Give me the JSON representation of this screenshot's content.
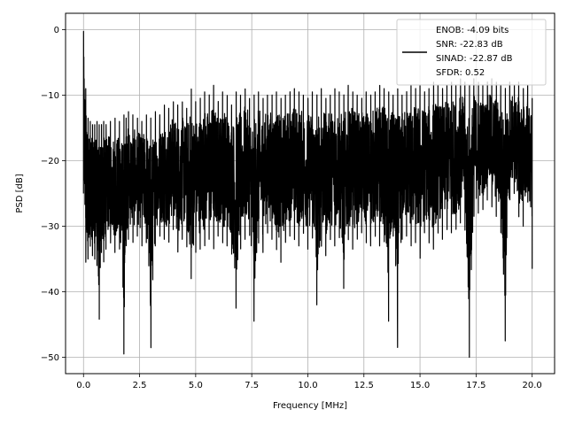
{
  "chart_data": {
    "type": "line",
    "title": "",
    "xlabel": "Frequency [MHz]",
    "ylabel": "PSD [dB]",
    "xlim": [
      -0.8,
      21.0
    ],
    "ylim": [
      -52.5,
      2.5
    ],
    "x_ticks": [
      0.0,
      2.5,
      5.0,
      7.5,
      10.0,
      12.5,
      15.0,
      17.5,
      20.0
    ],
    "x_tick_labels": [
      "0.0",
      "2.5",
      "5.0",
      "7.5",
      "10.0",
      "12.5",
      "15.0",
      "17.5",
      "20.0"
    ],
    "y_ticks": [
      0,
      -10,
      -20,
      -30,
      -40,
      -50
    ],
    "y_tick_labels": [
      "0",
      "−10",
      "−20",
      "−30",
      "−40",
      "−50"
    ],
    "grid": true,
    "legend_position": "top-right",
    "series": [
      {
        "color": "#000000",
        "x": [
          0.0,
          0.1,
          0.2,
          0.3,
          0.4,
          0.5,
          0.6,
          0.7,
          0.8,
          0.9,
          1.0,
          1.2,
          1.4,
          1.6,
          1.8,
          1.9,
          2.0,
          2.2,
          2.4,
          2.6,
          2.8,
          3.0,
          3.2,
          3.4,
          3.6,
          3.8,
          4.0,
          4.2,
          4.4,
          4.6,
          4.8,
          5.0,
          5.2,
          5.4,
          5.6,
          5.8,
          6.0,
          6.2,
          6.4,
          6.6,
          6.8,
          7.0,
          7.2,
          7.4,
          7.6,
          7.8,
          8.0,
          8.2,
          8.4,
          8.6,
          8.8,
          9.0,
          9.2,
          9.4,
          9.6,
          9.8,
          10.0,
          10.2,
          10.4,
          10.6,
          10.8,
          11.0,
          11.2,
          11.4,
          11.6,
          11.8,
          12.0,
          12.2,
          12.4,
          12.6,
          12.8,
          13.0,
          13.2,
          13.4,
          13.6,
          13.8,
          14.0,
          14.2,
          14.4,
          14.6,
          14.8,
          15.0,
          15.2,
          15.4,
          15.6,
          15.8,
          16.0,
          16.2,
          16.4,
          16.6,
          16.8,
          17.0,
          17.2,
          17.4,
          17.6,
          17.8,
          18.0,
          18.2,
          18.4,
          18.6,
          18.8,
          19.0,
          19.2,
          19.4,
          19.6,
          19.8,
          20.0
        ],
        "y_upper": [
          0.0,
          -9.0,
          -13.5,
          -14.0,
          -14.5,
          -14.5,
          -14.0,
          -14.5,
          -14.5,
          -14.0,
          -14.5,
          -14.0,
          -13.5,
          -14.0,
          -13.0,
          -13.5,
          -12.5,
          -13.0,
          -13.5,
          -14.0,
          -13.0,
          -13.5,
          -12.5,
          -13.0,
          -11.5,
          -12.0,
          -11.0,
          -11.5,
          -11.0,
          -12.0,
          -9.0,
          -11.0,
          -10.5,
          -9.5,
          -10.0,
          -8.5,
          -11.0,
          -9.5,
          -10.0,
          -11.5,
          -9.5,
          -10.0,
          -9.0,
          -10.5,
          -10.0,
          -9.5,
          -10.5,
          -10.0,
          -10.0,
          -9.5,
          -10.5,
          -10.0,
          -9.5,
          -9.0,
          -9.5,
          -10.0,
          -10.5,
          -9.5,
          -10.0,
          -9.0,
          -10.5,
          -10.0,
          -9.0,
          -9.5,
          -10.0,
          -8.5,
          -9.5,
          -10.0,
          -10.5,
          -9.5,
          -10.0,
          -9.5,
          -8.5,
          -9.0,
          -9.5,
          -10.0,
          -9.0,
          -10.0,
          -9.5,
          -8.5,
          -9.0,
          -8.5,
          -9.5,
          -9.0,
          -8.0,
          -8.5,
          -9.0,
          -8.5,
          -8.0,
          -8.5,
          -7.5,
          -8.0,
          -8.5,
          -7.5,
          -8.0,
          -8.5,
          -8.0,
          -7.5,
          -8.0,
          -8.5,
          -9.0,
          -8.0,
          -8.5,
          -8.0,
          -9.0,
          -8.5,
          -10.5
        ],
        "y_lower": [
          -25.0,
          -35.5,
          -35.0,
          -33.0,
          -34.5,
          -35.0,
          -36.0,
          -44.5,
          -34.0,
          -35.5,
          -33.5,
          -32.5,
          -34.0,
          -33.0,
          -49.5,
          -33.0,
          -32.0,
          -32.5,
          -31.5,
          -33.0,
          -32.5,
          -49.0,
          -33.0,
          -31.5,
          -32.0,
          -32.5,
          -30.5,
          -34.0,
          -32.0,
          -33.0,
          -38.0,
          -34.0,
          -33.5,
          -33.0,
          -32.0,
          -33.5,
          -31.5,
          -32.5,
          -33.0,
          -34.0,
          -42.5,
          -33.5,
          -32.0,
          -31.0,
          -44.5,
          -32.5,
          -34.0,
          -31.0,
          -32.0,
          -33.5,
          -35.5,
          -32.5,
          -31.5,
          -32.0,
          -33.0,
          -31.0,
          -33.5,
          -31.5,
          -42.0,
          -33.0,
          -34.5,
          -32.0,
          -33.0,
          -31.5,
          -39.5,
          -32.0,
          -33.5,
          -32.0,
          -31.0,
          -32.5,
          -33.0,
          -31.5,
          -33.0,
          -32.0,
          -44.5,
          -31.0,
          -48.5,
          -32.0,
          -31.5,
          -33.0,
          -32.5,
          -35.0,
          -31.0,
          -32.5,
          -33.5,
          -31.0,
          -32.0,
          -30.5,
          -31.0,
          -30.5,
          -29.5,
          -30.0,
          -50.0,
          -28.5,
          -28.0,
          -27.5,
          -26.0,
          -27.0,
          -28.5,
          -30.5,
          -47.5,
          -26.0,
          -25.0,
          -28.5,
          -30.0,
          -26.0,
          -36.5
        ]
      }
    ],
    "legend": {
      "lines": [
        "ENOB: -4.09 bits",
        "SNR: -22.83 dB",
        "SINAD: -22.87 dB",
        "SFDR: 0.52"
      ]
    }
  }
}
